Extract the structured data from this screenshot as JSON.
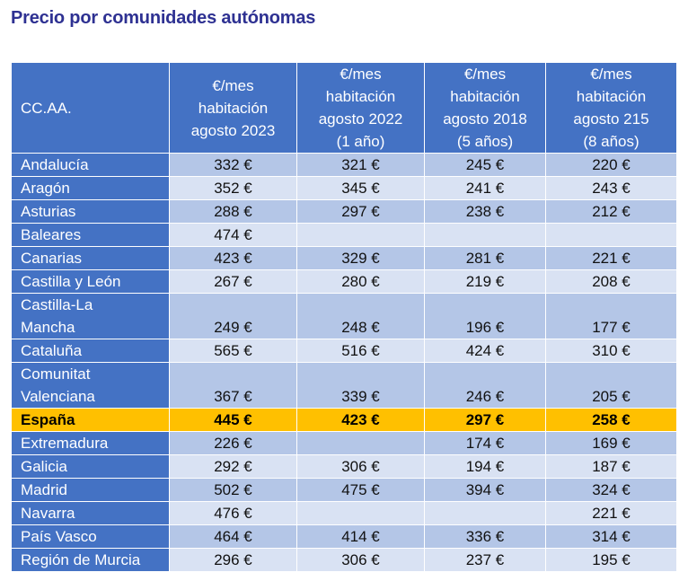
{
  "title": "Precio por comunidades autónomas",
  "colors": {
    "header": "#4472C4",
    "row_dark": "#B4C6E7",
    "row_light": "#D9E2F3",
    "highlight": "#FFC000",
    "title": "#2E3192"
  },
  "headers": [
    "CC.AA.",
    "€/mes habitación agosto 2023",
    "€/mes habitación agosto 2022 (1 año)",
    "€/mes habitación agosto 2018 (5 años)",
    "€/mes habitación agosto 215 (8 años)"
  ],
  "header_lines": [
    [
      "CC.AA."
    ],
    [
      "€/mes",
      "habitación",
      "agosto 2023"
    ],
    [
      "€/mes",
      "habitación",
      "agosto 2022",
      "(1 año)"
    ],
    [
      "€/mes",
      "habitación",
      "agosto 2018",
      "(5 años)"
    ],
    [
      "€/mes",
      "habitación",
      "agosto 215",
      "(8 años)"
    ]
  ],
  "rows": [
    {
      "name": "Andalucía",
      "values": [
        "332 €",
        "321 €",
        "245 €",
        "220 €"
      ]
    },
    {
      "name": "Aragón",
      "values": [
        "352 €",
        "345 €",
        "241 €",
        "243 €"
      ]
    },
    {
      "name": "Asturias",
      "values": [
        "288 €",
        "297 €",
        "238 €",
        "212 €"
      ]
    },
    {
      "name": "Baleares",
      "values": [
        "474 €",
        "",
        "",
        ""
      ]
    },
    {
      "name": "Canarias",
      "values": [
        "423 €",
        "329 €",
        "281 €",
        "221 €"
      ]
    },
    {
      "name": "Castilla y León",
      "values": [
        "267 €",
        "280 €",
        "219 €",
        "208 €"
      ]
    },
    {
      "name": "Castilla-La Mancha",
      "values": [
        "249 €",
        "248 €",
        "196 €",
        "177 €"
      ]
    },
    {
      "name": "Cataluña",
      "values": [
        "565 €",
        "516 €",
        "424 €",
        "310 €"
      ]
    },
    {
      "name": "Comunitat Valenciana",
      "values": [
        "367 €",
        "339 €",
        "246 €",
        "205 €"
      ]
    },
    {
      "name": "España",
      "values": [
        "445 €",
        "423 €",
        "297 €",
        "258 €"
      ],
      "highlight": true
    },
    {
      "name": "Extremadura",
      "values": [
        "226 €",
        "",
        "174 €",
        "169 €"
      ]
    },
    {
      "name": "Galicia",
      "values": [
        "292 €",
        "306 €",
        "194 €",
        "187 €"
      ]
    },
    {
      "name": "Madrid",
      "values": [
        "502 €",
        "475 €",
        "394 €",
        "324 €"
      ]
    },
    {
      "name": "Navarra",
      "values": [
        "476 €",
        "",
        "",
        "221 €"
      ]
    },
    {
      "name": "País Vasco",
      "values": [
        "464 €",
        "414 €",
        "336 €",
        "314 €"
      ]
    },
    {
      "name": "Región de Murcia",
      "values": [
        "296 €",
        "306 €",
        "237 €",
        "195 €"
      ]
    }
  ]
}
